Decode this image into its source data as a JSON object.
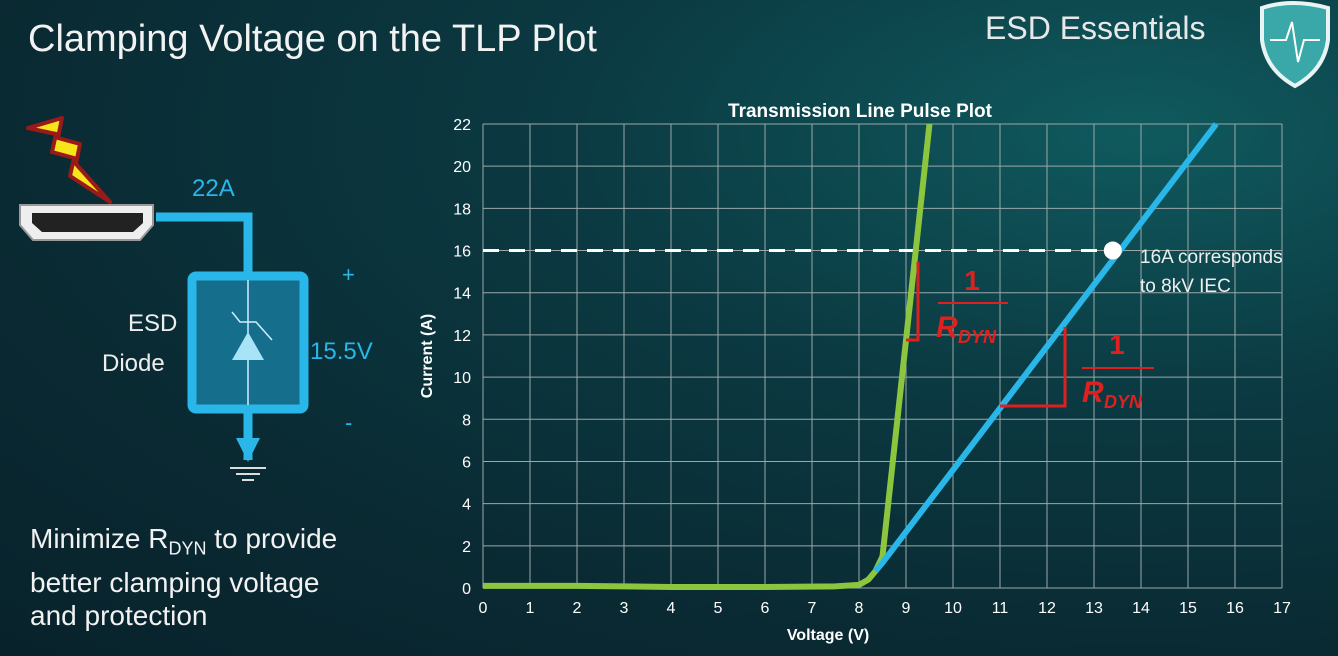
{
  "slide": {
    "title": "Clamping Voltage on the TLP Plot",
    "brand": "ESD Essentials",
    "bottom_text": {
      "line1_pre": "Minimize R",
      "line1_sub": "DYN",
      "line1_post": " to provide",
      "line2": "better clamping voltage",
      "line3": "and protection"
    }
  },
  "circuit": {
    "current_label": "22A",
    "device_label_1": "ESD",
    "device_label_2": "Diode",
    "voltage_label": "15.5V",
    "plus": "+",
    "minus": "-",
    "color": "#29b6e8"
  },
  "annotations": {
    "point_label_1": "16A corresponds",
    "point_label_2": "to 8kV IEC",
    "rdyn_num": "1",
    "rdyn_R": "R",
    "rdyn_sub": "DYN",
    "rdyn_color": "#e0201e"
  },
  "chart_data": {
    "type": "line",
    "title": "Transmission Line Pulse Plot",
    "xlabel": "Voltage (V)",
    "ylabel": "Current (A)",
    "xlim": [
      0,
      17
    ],
    "ylim": [
      0,
      22
    ],
    "grid": true,
    "xticks": [
      "0",
      "1",
      "2",
      "3",
      "4",
      "5",
      "6",
      "7",
      "8",
      "9",
      "10",
      "11",
      "12",
      "13",
      "14",
      "15",
      "16",
      "17"
    ],
    "yticks": [
      "0",
      "2",
      "4",
      "6",
      "8",
      "10",
      "12",
      "14",
      "16",
      "18",
      "20",
      "22"
    ],
    "series": [
      {
        "color": "#8cc63f",
        "x": [
          0,
          2,
          4,
          6,
          7.5,
          8,
          8.2,
          8.35,
          8.5,
          9.5
        ],
        "y": [
          0.1,
          0.1,
          0.05,
          0.05,
          0.08,
          0.15,
          0.4,
          0.8,
          1.5,
          22
        ]
      },
      {
        "color": "#29b6e8",
        "x": [
          8.35,
          8.5,
          15.6
        ],
        "y": [
          0.8,
          1.2,
          22
        ]
      }
    ],
    "reference_line": {
      "y": 16,
      "x_end": 13.4
    },
    "marker": {
      "x": 13.4,
      "y": 16
    }
  }
}
